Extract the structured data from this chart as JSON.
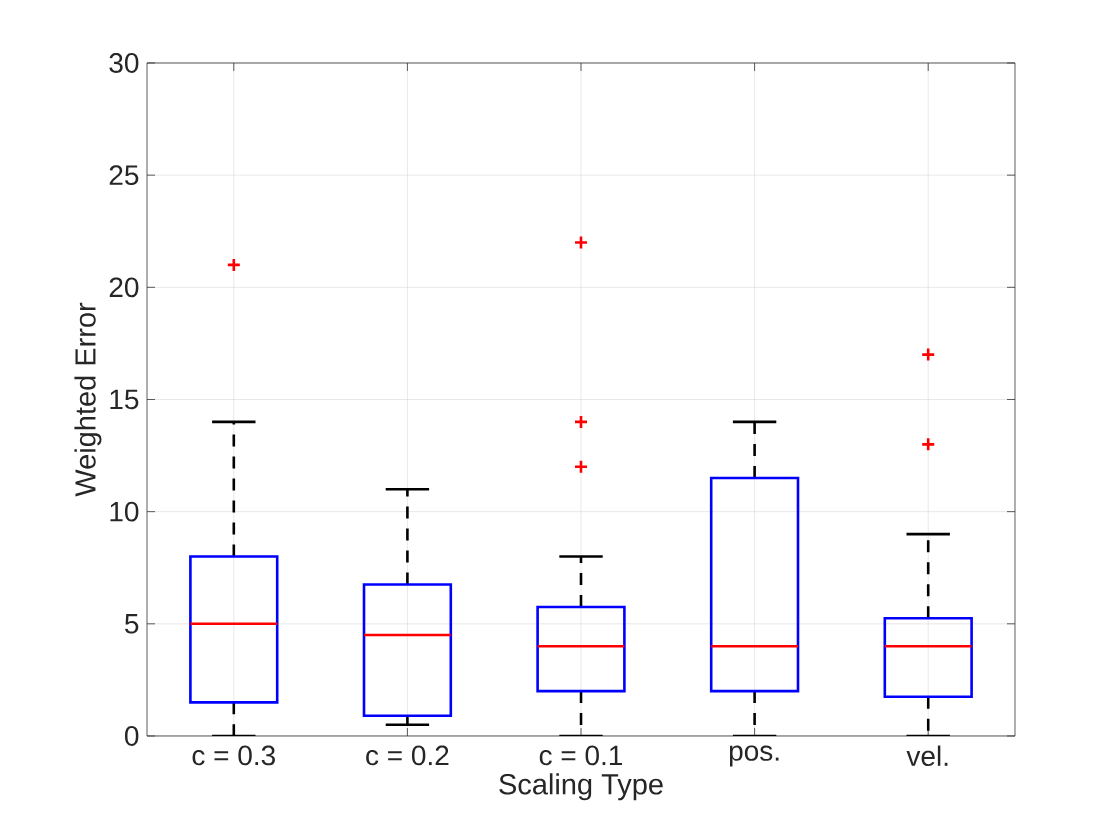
{
  "chart_data": {
    "type": "box",
    "categories": [
      "c = 0.3",
      "c = 0.2",
      "c = 0.1",
      "pos.",
      "vel."
    ],
    "series": [
      {
        "color": "#0000ff",
        "boxes": [
          {
            "low": 0,
            "q1": 1.5,
            "median": 5,
            "q3": 8,
            "high": 14,
            "outliers": [
              21
            ]
          },
          {
            "low": 0.5,
            "q1": 0.9,
            "median": 4.5,
            "q3": 6.75,
            "high": 11
          },
          {
            "low": 0,
            "q1": 2,
            "median": 4,
            "q3": 5.75,
            "high": 8,
            "outliers": [
              22,
              14,
              12
            ]
          },
          {
            "low": 0,
            "q1": 2,
            "median": 4,
            "q3": 11.5,
            "high": 14
          },
          {
            "low": 0,
            "q1": 1.75,
            "median": 4,
            "q3": 5.25,
            "high": 9,
            "outliers": [
              17,
              13
            ]
          }
        ]
      }
    ],
    "xlabel": "Scaling Type",
    "ylabel": "Weighted Error",
    "ylim": [
      0,
      30
    ],
    "yticks": [
      0,
      5,
      10,
      15,
      20,
      25,
      30
    ],
    "grid": true
  }
}
